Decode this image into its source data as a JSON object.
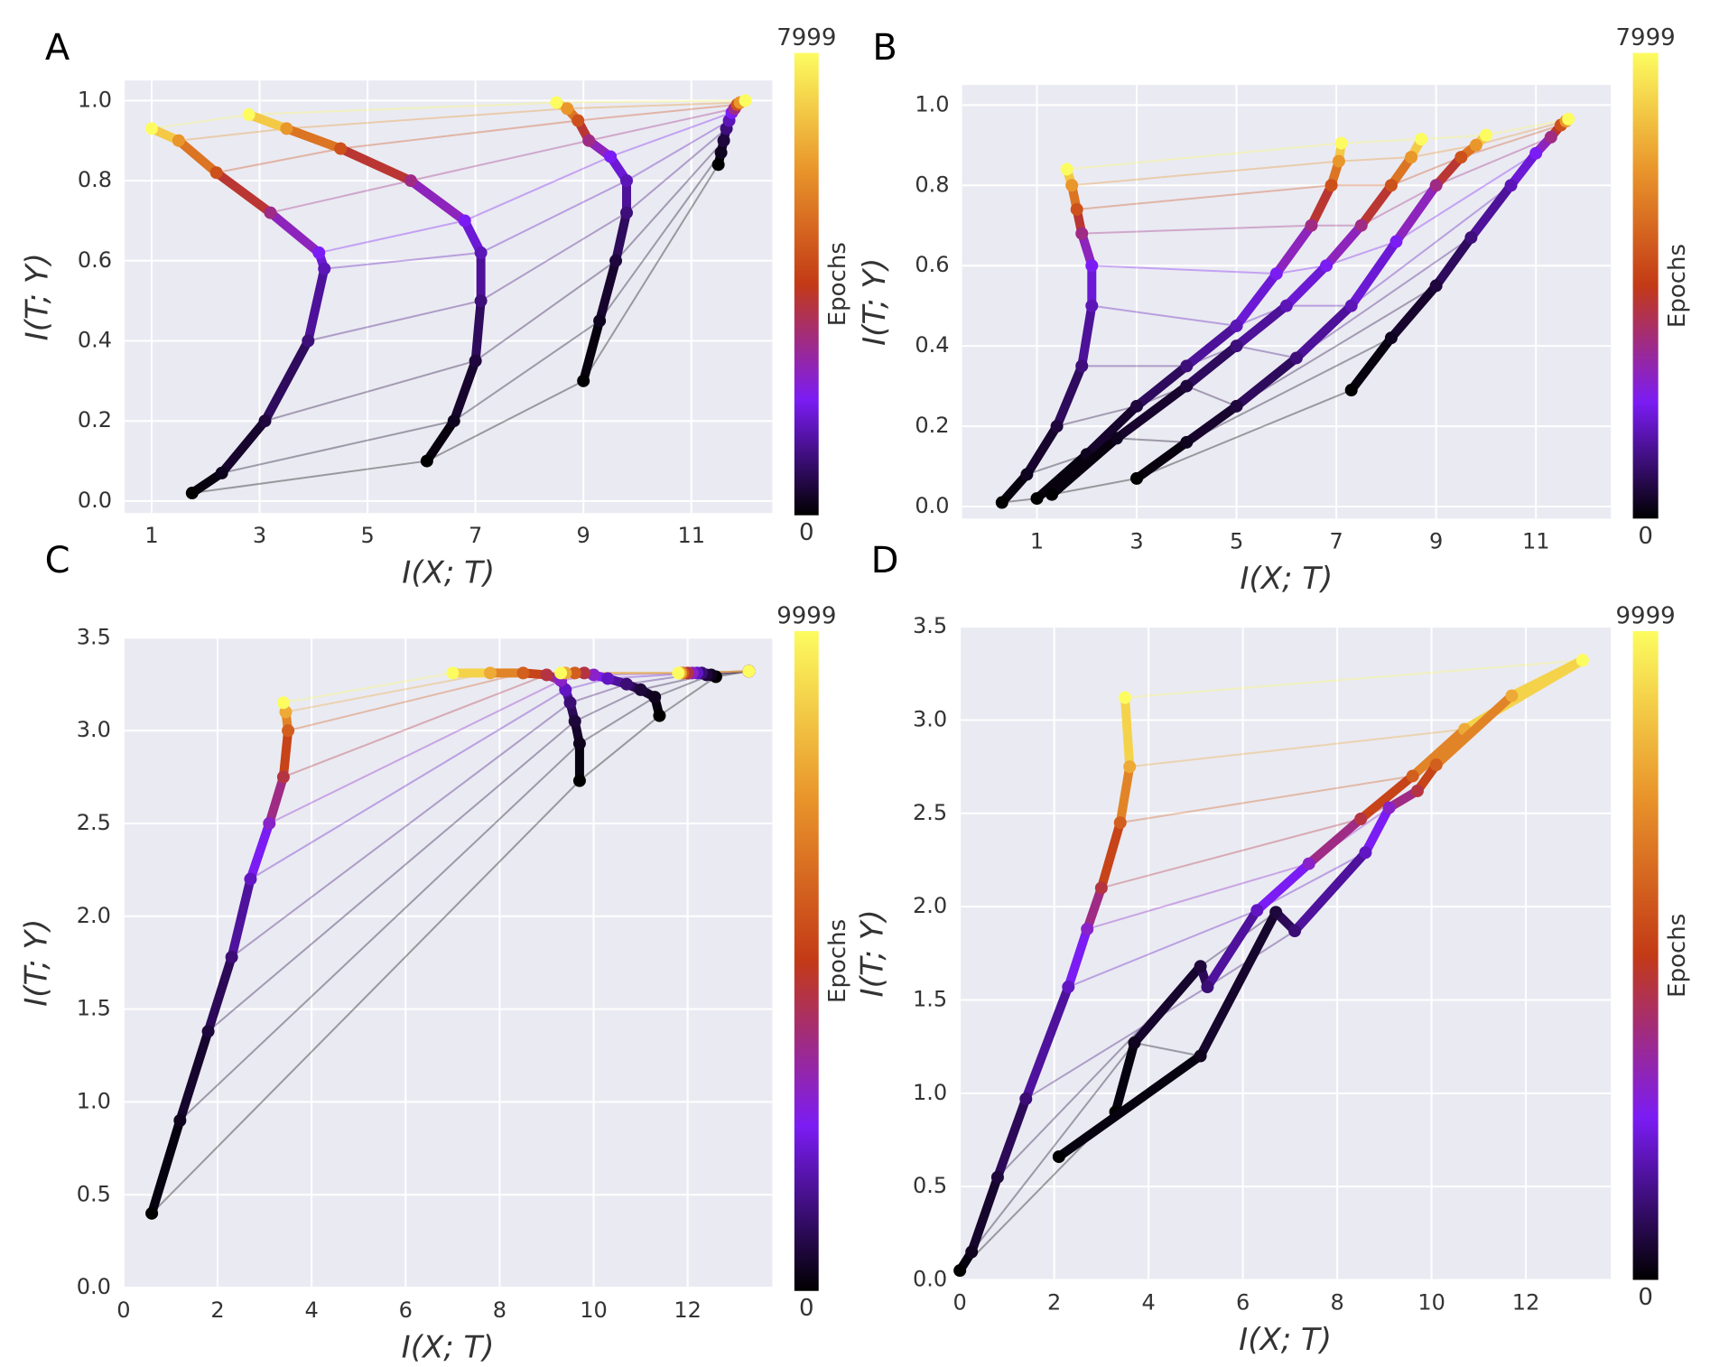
{
  "chart_data": [
    {
      "type": "scatter",
      "panel": "A",
      "xlabel": "I(X; T)",
      "ylabel": "I(T; Y)",
      "colorbar": {
        "label": "Epochs",
        "min": 0,
        "max": 7999
      },
      "colormap": [
        "#000000",
        "#7b1cf4",
        "#c33a16",
        "#e9962b",
        "#fcfc60"
      ],
      "grid": true,
      "epochs": [
        0,
        250,
        500,
        1000,
        1500,
        2000,
        3000,
        4500,
        6000,
        7999
      ],
      "xlim": [
        0.5,
        12.5
      ],
      "xticks": [
        1,
        3,
        5,
        7,
        9,
        11
      ],
      "ylim": [
        -0.03,
        1.05
      ],
      "yticks": [
        {
          "value": 0,
          "label": "0.0"
        },
        0.2,
        0.4,
        0.6,
        0.8,
        {
          "value": 1,
          "label": "1.0"
        }
      ],
      "series": [
        {
          "x": [
            1.75,
            2.3,
            3.1,
            3.9,
            4.2,
            4.1,
            3.2,
            2.2,
            1.5,
            1.0
          ],
          "y": [
            0.02,
            0.07,
            0.2,
            0.4,
            0.58,
            0.62,
            0.72,
            0.82,
            0.9,
            0.93
          ]
        },
        {
          "x": [
            6.1,
            6.6,
            7.0,
            7.1,
            7.1,
            6.8,
            5.8,
            4.5,
            3.5,
            2.8
          ],
          "y": [
            0.1,
            0.2,
            0.35,
            0.5,
            0.62,
            0.7,
            0.8,
            0.88,
            0.93,
            0.965
          ]
        },
        {
          "x": [
            9.0,
            9.3,
            9.6,
            9.8,
            9.8,
            9.5,
            9.1,
            8.9,
            8.7,
            8.5
          ],
          "y": [
            0.3,
            0.45,
            0.6,
            0.72,
            0.8,
            0.86,
            0.9,
            0.95,
            0.98,
            0.995
          ]
        },
        {
          "x": [
            11.5,
            11.55,
            11.6,
            11.65,
            11.7,
            11.75,
            11.8,
            11.85,
            11.9,
            12.0
          ],
          "y": [
            0.84,
            0.87,
            0.9,
            0.93,
            0.95,
            0.97,
            0.98,
            0.99,
            0.995,
            1.0
          ]
        }
      ]
    },
    {
      "type": "scatter",
      "panel": "B",
      "xlabel": "I(X; T)",
      "ylabel": "I(T; Y)",
      "colorbar": {
        "label": "Epochs",
        "min": 0,
        "max": 7999
      },
      "colormap": [
        "#000000",
        "#7b1cf4",
        "#c33a16",
        "#e9962b",
        "#fcfc60"
      ],
      "grid": true,
      "epochs": [
        0,
        250,
        500,
        1000,
        1500,
        2000,
        3000,
        4500,
        6000,
        7999
      ],
      "xlim": [
        -0.5,
        12.5
      ],
      "xticks": [
        1,
        3,
        5,
        7,
        9,
        11
      ],
      "ylim": [
        -0.03,
        1.05
      ],
      "yticks": [
        {
          "value": 0,
          "label": "0.0"
        },
        0.2,
        0.4,
        0.6,
        0.8,
        {
          "value": 1,
          "label": "1.0"
        }
      ],
      "series": [
        {
          "x": [
            0.3,
            0.8,
            1.4,
            1.9,
            2.1,
            2.1,
            1.9,
            1.8,
            1.7,
            1.6
          ],
          "y": [
            0.01,
            0.08,
            0.2,
            0.35,
            0.5,
            0.6,
            0.68,
            0.74,
            0.8,
            0.84
          ]
        },
        {
          "x": [
            1.0,
            2.0,
            3.0,
            4.0,
            5.0,
            5.8,
            6.5,
            6.9,
            7.05,
            7.1
          ],
          "y": [
            0.02,
            0.13,
            0.25,
            0.35,
            0.45,
            0.58,
            0.7,
            0.8,
            0.86,
            0.905
          ]
        },
        {
          "x": [
            1.3,
            2.6,
            4.0,
            5.0,
            6.0,
            6.8,
            7.5,
            8.1,
            8.5,
            8.7
          ],
          "y": [
            0.03,
            0.17,
            0.3,
            0.4,
            0.5,
            0.6,
            0.7,
            0.8,
            0.87,
            0.915
          ]
        },
        {
          "x": [
            3.0,
            4.0,
            5.0,
            6.2,
            7.3,
            8.2,
            9.0,
            9.5,
            9.8,
            10.0
          ],
          "y": [
            0.07,
            0.16,
            0.25,
            0.37,
            0.5,
            0.66,
            0.8,
            0.87,
            0.9,
            0.925
          ]
        },
        {
          "x": [
            7.3,
            8.1,
            9.0,
            9.7,
            10.5,
            11.0,
            11.3,
            11.5,
            11.6,
            11.65
          ],
          "y": [
            0.29,
            0.42,
            0.55,
            0.67,
            0.8,
            0.88,
            0.92,
            0.95,
            0.96,
            0.965
          ]
        }
      ]
    },
    {
      "type": "scatter",
      "panel": "C",
      "xlabel": "I(X; T)",
      "ylabel": "I(T; Y)",
      "colorbar": {
        "label": "Epochs",
        "min": 0,
        "max": 9999
      },
      "colormap": [
        "#000000",
        "#7b1cf4",
        "#c33a16",
        "#e9962b",
        "#fcfc60"
      ],
      "grid": true,
      "epochs": [
        0,
        300,
        600,
        1200,
        2000,
        3000,
        4500,
        6000,
        8000,
        9999
      ],
      "xlim": [
        0,
        13.8
      ],
      "xticks": [
        0,
        2,
        4,
        6,
        8,
        10,
        12
      ],
      "ylim": [
        0,
        3.5
      ],
      "yticks": [
        {
          "value": 0,
          "label": "0.0"
        },
        0.5,
        {
          "value": 1,
          "label": "1.0"
        },
        1.5,
        {
          "value": 2,
          "label": "2.0"
        },
        2.5,
        {
          "value": 3,
          "label": "3.0"
        },
        3.5
      ],
      "series": [
        {
          "x": [
            0.6,
            1.2,
            1.8,
            2.3,
            2.7,
            3.1,
            3.4,
            3.5,
            3.45,
            3.4
          ],
          "y": [
            0.4,
            0.9,
            1.38,
            1.78,
            2.2,
            2.5,
            2.75,
            3.0,
            3.1,
            3.15
          ]
        },
        {
          "x": [
            9.7,
            9.7,
            9.6,
            9.5,
            9.4,
            9.3,
            9.0,
            8.5,
            7.8,
            7.0
          ],
          "y": [
            2.73,
            2.93,
            3.05,
            3.15,
            3.22,
            3.27,
            3.3,
            3.31,
            3.31,
            3.31
          ]
        },
        {
          "x": [
            11.4,
            11.3,
            11.0,
            10.7,
            10.3,
            10.0,
            9.8,
            9.6,
            9.4,
            9.3
          ],
          "y": [
            3.08,
            3.18,
            3.22,
            3.25,
            3.28,
            3.3,
            3.31,
            3.31,
            3.31,
            3.31
          ]
        },
        {
          "x": [
            12.6,
            12.5,
            12.4,
            12.3,
            12.2,
            12.1,
            12.0,
            11.9,
            11.85,
            11.8
          ],
          "y": [
            3.29,
            3.3,
            3.3,
            3.31,
            3.31,
            3.31,
            3.31,
            3.31,
            3.31,
            3.31
          ]
        },
        {
          "x": [
            13.3,
            13.3,
            13.3,
            13.3,
            13.3,
            13.3,
            13.3,
            13.3,
            13.3,
            13.3
          ],
          "y": [
            3.32,
            3.32,
            3.32,
            3.32,
            3.32,
            3.32,
            3.32,
            3.32,
            3.32,
            3.32
          ]
        }
      ]
    },
    {
      "type": "scatter",
      "panel": "D",
      "xlabel": "I(X; T)",
      "ylabel": "I(T; Y)",
      "colorbar": {
        "label": "Epochs",
        "min": 0,
        "max": 9999
      },
      "colormap": [
        "#000000",
        "#7b1cf4",
        "#c33a16",
        "#e9962b",
        "#fcfc60"
      ],
      "grid": true,
      "epochs": [
        0,
        300,
        600,
        1200,
        2000,
        3000,
        4500,
        6000,
        8000,
        9999
      ],
      "xlim": [
        0,
        13.8
      ],
      "xticks": [
        0,
        2,
        4,
        6,
        8,
        10,
        12
      ],
      "ylim": [
        0,
        3.5
      ],
      "yticks": [
        {
          "value": 0,
          "label": "0.0"
        },
        0.5,
        {
          "value": 1,
          "label": "1.0"
        },
        1.5,
        {
          "value": 2,
          "label": "2.0"
        },
        2.5,
        {
          "value": 3,
          "label": "3.0"
        },
        3.5
      ],
      "series": [
        {
          "x": [
            0.0,
            0.25,
            0.8,
            1.4,
            2.3,
            2.7,
            3.0,
            3.4,
            3.6,
            3.5
          ],
          "y": [
            0.05,
            0.15,
            0.55,
            0.97,
            1.57,
            1.88,
            2.1,
            2.45,
            2.75,
            3.12
          ]
        },
        {
          "x": [
            3.3,
            3.7,
            5.1,
            5.25,
            6.3,
            7.4,
            8.5,
            9.6,
            10.7,
            13.2
          ],
          "y": [
            0.9,
            1.27,
            1.68,
            1.57,
            1.98,
            2.23,
            2.47,
            2.7,
            2.95,
            3.32
          ]
        },
        {
          "x": [
            2.1,
            5.1,
            6.7,
            7.1,
            8.6,
            9.1,
            9.7,
            10.1,
            11.7,
            13.2
          ],
          "y": [
            0.66,
            1.2,
            1.97,
            1.87,
            2.29,
            2.53,
            2.62,
            2.76,
            3.13,
            3.32
          ]
        }
      ]
    }
  ]
}
